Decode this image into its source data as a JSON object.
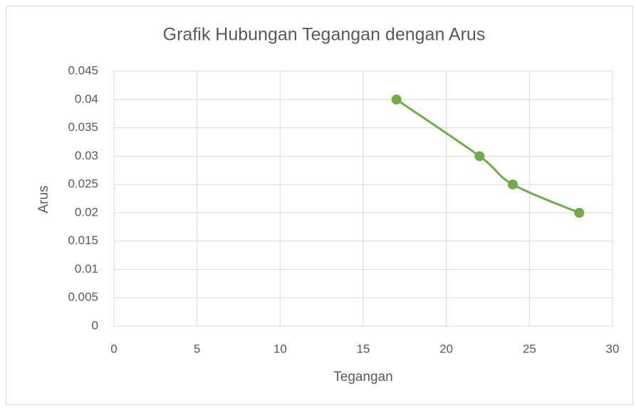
{
  "chart_data": {
    "type": "scatter",
    "title": "Grafik Hubungan Tegangan dengan Arus",
    "x_label": "Tegangan",
    "y_label": "Arus",
    "series": [
      {
        "name": "Arus",
        "color": "#70ad47",
        "x": [
          17,
          22,
          24,
          28
        ],
        "values": [
          0.04,
          0.03,
          0.025,
          0.02
        ]
      }
    ],
    "xlim": [
      0,
      30
    ],
    "xticks": [
      0,
      5,
      10,
      15,
      20,
      25,
      30
    ],
    "ylim": [
      0,
      0.045
    ],
    "yticks": [
      0,
      0.005,
      0.01,
      0.015,
      0.02,
      0.025,
      0.03,
      0.035,
      0.04,
      0.045
    ],
    "grid": true
  }
}
